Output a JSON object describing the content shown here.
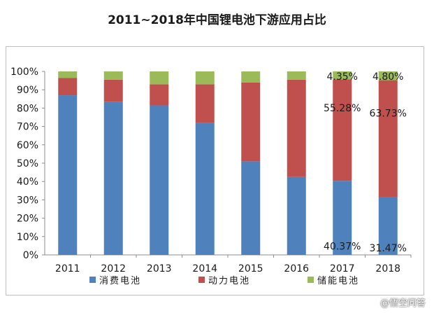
{
  "chart_data": {
    "type": "bar",
    "stacked": true,
    "title": "2011~2018年中国锂电池下游应用占比",
    "categories": [
      "2011",
      "2012",
      "2013",
      "2014",
      "2015",
      "2016",
      "2017",
      "2018"
    ],
    "series": [
      {
        "name": "消费电池",
        "color": "#4f81bd",
        "values": [
          87,
          83.5,
          81.5,
          72,
          51,
          42.5,
          40.37,
          31.47
        ]
      },
      {
        "name": "动力电池",
        "color": "#c0504d",
        "values": [
          9.5,
          12,
          11.5,
          21,
          43,
          53,
          55.28,
          63.73
        ]
      },
      {
        "name": "储能电池",
        "color": "#9bbb59",
        "values": [
          3.5,
          4.5,
          7,
          7,
          6,
          4.5,
          4.35,
          4.8
        ]
      }
    ],
    "data_labels": [
      {
        "category": "2017",
        "series": "储能电池",
        "text": "4.35%"
      },
      {
        "category": "2017",
        "series": "动力电池",
        "text": "55.28%"
      },
      {
        "category": "2017",
        "series": "消费电池",
        "text": "40.37%"
      },
      {
        "category": "2018",
        "series": "储能电池",
        "text": "4.80%"
      },
      {
        "category": "2018",
        "series": "动力电池",
        "text": "63.73%"
      },
      {
        "category": "2018",
        "series": "消费电池",
        "text": "31.47%"
      }
    ],
    "y_ticks": [
      "0%",
      "10%",
      "20%",
      "30%",
      "40%",
      "50%",
      "60%",
      "70%",
      "80%",
      "90%",
      "100%"
    ],
    "ylim": [
      0,
      100
    ],
    "legend_position": "bottom"
  },
  "watermark": "@悟空问答"
}
